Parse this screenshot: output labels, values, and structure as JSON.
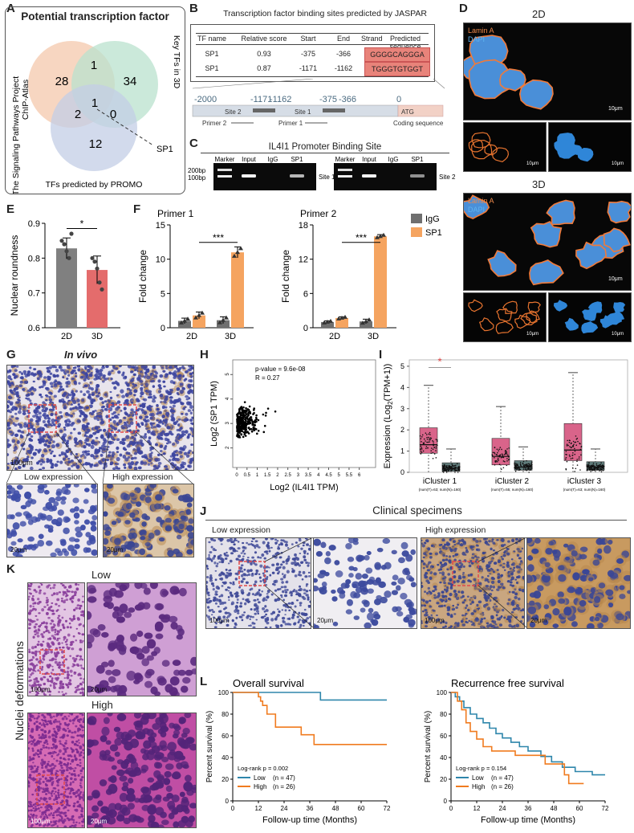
{
  "panel_letters": {
    "a": "A",
    "b": "B",
    "c": "C",
    "d": "D",
    "e": "E",
    "f": "F",
    "g": "G",
    "h": "H",
    "i": "I",
    "j": "J",
    "k": "K",
    "l": "L"
  },
  "panel_a": {
    "title": "Potential transcription factor",
    "circle1_label": "The Signaling Pathways Project\nChIP-Atlas",
    "circle1_line1": "The Signaling Pathways Project",
    "circle1_line2": "ChIP-Atlas",
    "circle2_label": "Key TFs in 3D",
    "circle3_label": "TFs predicted by PROMO",
    "counts": {
      "only1": "28",
      "only2": "34",
      "only3": "12",
      "c12": "1",
      "c13": "2",
      "c23": "0",
      "c123": "1"
    },
    "callout": "SP1",
    "colors": {
      "c1": "#f6cfb6",
      "c2": "#b9e2cd",
      "c3": "#c3cde6"
    }
  },
  "panel_b": {
    "title": "Transcription factor binding sites predicted by JASPAR",
    "headers": [
      "TF name",
      "Relative score",
      "Start",
      "End",
      "Strand",
      "Predicted sequence"
    ],
    "rows": [
      [
        "SP1",
        "0.93",
        "-375",
        "-366",
        "+",
        "GGGGCAGGGA"
      ],
      [
        "SP1",
        "0.87",
        "-1171",
        "-1162",
        "+",
        "TGGGTGTGGT"
      ]
    ],
    "seq_color": "#e8837a",
    "map_ticks": [
      "-2000",
      "-1171",
      "-1162",
      "-375",
      "-366",
      "0"
    ],
    "site2": "Site 2",
    "site1": "Site 1",
    "atg": "ATG",
    "primer2": "Primer 2",
    "primer1": "Primer 1",
    "coding": "Coding sequence"
  },
  "panel_c": {
    "title": "IL4I1 Promoter Binding Site",
    "lanes": [
      "Marker",
      "Input",
      "IgG",
      "SP1"
    ],
    "ladder": [
      "200bp",
      "100bp"
    ],
    "site1": "Site 1",
    "site2": "Site 2"
  },
  "panel_d": {
    "label_2d": "2D",
    "label_3d": "3D",
    "lamin": "Lamin A",
    "dapi": "DAPI",
    "scale": "10μm"
  },
  "panel_e": {
    "chart_data": {
      "type": "bar",
      "categories": [
        "2D",
        "3D"
      ],
      "values": [
        0.828,
        0.766
      ],
      "errors": [
        0.03,
        0.04
      ],
      "points": [
        [
          0.85,
          0.84,
          0.82,
          0.8,
          0.87
        ],
        [
          0.8,
          0.79,
          0.77,
          0.73,
          0.71
        ]
      ],
      "ylabel": "Nuclear roundness",
      "ylim": [
        0.6,
        0.9
      ],
      "yticks": [
        "0.6",
        "0.7",
        "0.8",
        "0.9"
      ],
      "significance": "*",
      "colors": [
        "#808080",
        "#e46c6c"
      ]
    }
  },
  "panel_f": {
    "chart_data": [
      {
        "type": "bar",
        "title": "Primer 1",
        "categories": [
          "2D",
          "3D"
        ],
        "series": [
          {
            "name": "IgG",
            "values": [
              1.0,
              1.1
            ],
            "errors": [
              0.4,
              0.5
            ]
          },
          {
            "name": "SP1",
            "values": [
              1.8,
              11.0
            ],
            "errors": [
              0.5,
              0.8
            ]
          }
        ],
        "ylabel": "Fold change",
        "ylim": [
          0,
          15
        ],
        "yticks": [
          "0",
          "5",
          "10",
          "15"
        ],
        "significance": "***"
      },
      {
        "type": "bar",
        "title": "Primer 2",
        "categories": [
          "2D",
          "3D"
        ],
        "series": [
          {
            "name": "IgG",
            "values": [
              1.0,
              1.1
            ],
            "errors": [
              0.2,
              0.4
            ]
          },
          {
            "name": "SP1",
            "values": [
              1.7,
              16.0
            ],
            "errors": [
              0.2,
              0.3
            ]
          }
        ],
        "ylabel": "Fold change",
        "ylim": [
          0,
          18
        ],
        "yticks": [
          "0",
          "6",
          "12",
          "18"
        ],
        "significance": "***"
      }
    ],
    "legend": [
      "IgG",
      "SP1"
    ],
    "colors": {
      "igg": "#6f6f6f",
      "sp1": "#f5a460"
    }
  },
  "panel_g": {
    "title": "In vivo",
    "low": "Low expression",
    "high": "High expression",
    "scale_big": "100μm",
    "scale_small": "20μm"
  },
  "panel_h": {
    "chart_data": {
      "type": "scatter",
      "xlabel": "Log2 (IL4I1 TPM)",
      "ylabel": "Log2 (SP1 TPM)",
      "xticks": [
        "0",
        "0.5",
        "1",
        "1.5",
        "2",
        "2.5",
        "3",
        "3.5",
        "4",
        "4.5",
        "5",
        "5.5",
        "6"
      ],
      "yticks": [
        "2",
        "3",
        "4",
        "5"
      ],
      "xlim": [
        -0.2,
        6.8
      ],
      "ylim": [
        1.2,
        5.6
      ],
      "annotation_p": "p-value = 9.6e-08",
      "annotation_r": "R = 0.27"
    }
  },
  "panel_i": {
    "chart_data": {
      "type": "box",
      "ylabel": "Expression (Log2(TPM+1))",
      "ylabel_main": "Expression (Log",
      "ylabel_sub": "2",
      "ylabel_end": "(TPM+1))",
      "yticks": [
        "0",
        "1",
        "2",
        "3",
        "4",
        "5"
      ],
      "ylim": [
        0,
        5.3
      ],
      "groups": [
        {
          "name": "iCluster 1",
          "n": "(num(T)=63; num(N)=160)",
          "tumor": [
            0.0,
            0.9,
            1.3,
            2.1,
            4.1
          ],
          "normal": [
            0.0,
            0.05,
            0.2,
            0.45,
            1.1
          ]
        },
        {
          "name": "iCluster 2",
          "n": "(num(T)=55; num(N)=160)",
          "tumor": [
            0.0,
            0.35,
            0.75,
            1.6,
            3.1
          ],
          "normal": [
            0.0,
            0.1,
            0.25,
            0.55,
            1.2
          ]
        },
        {
          "name": "iCluster 3",
          "n": "(num(T)=63; num(N)=160)",
          "tumor": [
            0.0,
            0.55,
            1.05,
            2.3,
            4.7
          ],
          "normal": [
            0.0,
            0.1,
            0.25,
            0.5,
            1.1
          ]
        }
      ],
      "significance": "*",
      "colors": {
        "tumor": "#d9648a",
        "normal": "#5f7b7a"
      }
    }
  },
  "panel_j": {
    "title": "Clinical specimens",
    "low": "Low expression",
    "high": "High expression",
    "scale_big": "100μm",
    "scale_small": "20μm"
  },
  "panel_k": {
    "low": "Low",
    "high": "High",
    "side": "Nuclei deformations",
    "scale_big": "100μm",
    "scale_small": "20μm"
  },
  "panel_l": {
    "chart_data": [
      {
        "type": "line",
        "title": "Overall survival",
        "xlabel": "Follow-up time (Months)",
        "ylabel": "Percent survival (%)",
        "xlim": [
          0,
          72
        ],
        "ylim": [
          0,
          100
        ],
        "xticks": [
          "0",
          "12",
          "24",
          "36",
          "48",
          "60",
          "72"
        ],
        "yticks": [
          "0",
          "20",
          "40",
          "60",
          "80",
          "100"
        ],
        "pvalue": "Log-rank p = 0.002",
        "series": [
          {
            "name": "Low",
            "n": "(n = 47)",
            "steps": [
              [
                0,
                100
              ],
              [
                41,
                100
              ],
              [
                41,
                93
              ],
              [
                72,
                93
              ]
            ]
          },
          {
            "name": "High",
            "n": "(n = 26)",
            "steps": [
              [
                0,
                100
              ],
              [
                12,
                100
              ],
              [
                12,
                96
              ],
              [
                13,
                96
              ],
              [
                13,
                92
              ],
              [
                14,
                92
              ],
              [
                14,
                88
              ],
              [
                16,
                88
              ],
              [
                16,
                80
              ],
              [
                20,
                80
              ],
              [
                20,
                68
              ],
              [
                32,
                68
              ],
              [
                32,
                61
              ],
              [
                38,
                61
              ],
              [
                38,
                52
              ],
              [
                72,
                52
              ]
            ]
          }
        ]
      },
      {
        "type": "line",
        "title": "Recurrence free survival",
        "xlabel": "Follow-up time (Months)",
        "ylabel": "Percent survival (%)",
        "xlim": [
          0,
          72
        ],
        "ylim": [
          0,
          100
        ],
        "xticks": [
          "0",
          "12",
          "24",
          "36",
          "48",
          "60",
          "72"
        ],
        "yticks": [
          "0",
          "20",
          "40",
          "60",
          "80",
          "100"
        ],
        "pvalue": "Log-rank p = 0.154",
        "series": [
          {
            "name": "Low",
            "n": "(n = 47)",
            "steps": [
              [
                0,
                100
              ],
              [
                2,
                100
              ],
              [
                2,
                96
              ],
              [
                4,
                96
              ],
              [
                4,
                92
              ],
              [
                6,
                92
              ],
              [
                6,
                86
              ],
              [
                9,
                86
              ],
              [
                9,
                80
              ],
              [
                12,
                80
              ],
              [
                12,
                76
              ],
              [
                15,
                76
              ],
              [
                15,
                72
              ],
              [
                18,
                72
              ],
              [
                18,
                67
              ],
              [
                21,
                67
              ],
              [
                21,
                62
              ],
              [
                24,
                62
              ],
              [
                24,
                58
              ],
              [
                28,
                58
              ],
              [
                28,
                54
              ],
              [
                32,
                54
              ],
              [
                32,
                50
              ],
              [
                36,
                50
              ],
              [
                36,
                46
              ],
              [
                42,
                46
              ],
              [
                42,
                41
              ],
              [
                47,
                41
              ],
              [
                47,
                36
              ],
              [
                52,
                36
              ],
              [
                52,
                31
              ],
              [
                58,
                31
              ],
              [
                58,
                27
              ],
              [
                66,
                27
              ],
              [
                66,
                24
              ],
              [
                72,
                24
              ]
            ]
          },
          {
            "name": "High",
            "n": "(n = 26)",
            "steps": [
              [
                0,
                100
              ],
              [
                3,
                100
              ],
              [
                3,
                92
              ],
              [
                5,
                92
              ],
              [
                5,
                84
              ],
              [
                7,
                84
              ],
              [
                7,
                72
              ],
              [
                9,
                72
              ],
              [
                9,
                64
              ],
              [
                12,
                64
              ],
              [
                12,
                57
              ],
              [
                15,
                57
              ],
              [
                15,
                50
              ],
              [
                19,
                50
              ],
              [
                19,
                46
              ],
              [
                30,
                46
              ],
              [
                30,
                42
              ],
              [
                44,
                42
              ],
              [
                44,
                34
              ],
              [
                53,
                34
              ],
              [
                53,
                24
              ],
              [
                55,
                24
              ],
              [
                55,
                16
              ],
              [
                62,
                16
              ]
            ]
          }
        ],
        "colors": {
          "low": "#2e86ab",
          "high": "#f07b1f"
        }
      }
    ]
  }
}
